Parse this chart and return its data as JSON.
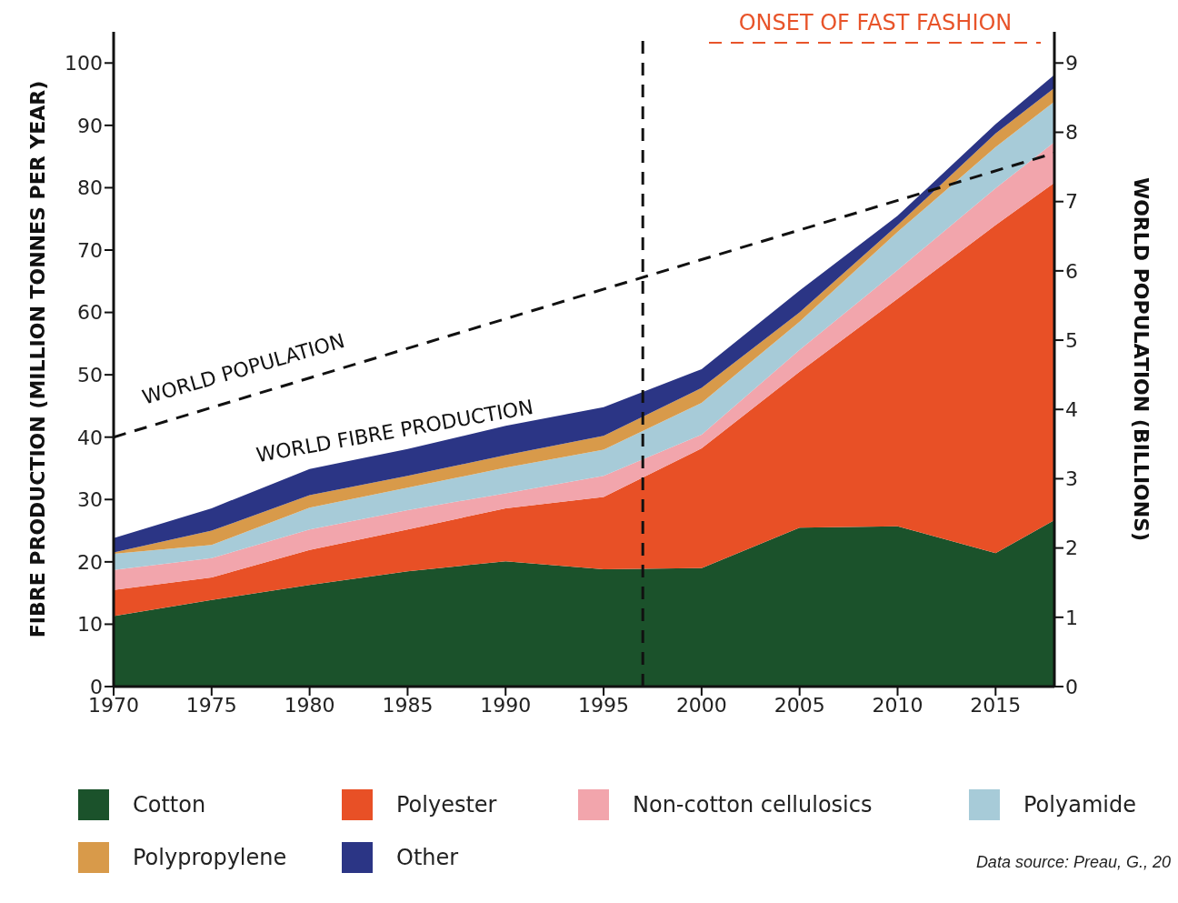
{
  "chart_data": {
    "type": "area",
    "stacked": true,
    "ylabel": "FIBRE PRODUCTION (MILLION TONNES PER YEAR)",
    "y2label": "WORLD POPULATION (BILLIONS)",
    "x": [
      1970,
      1975,
      1980,
      1985,
      1990,
      1995,
      2000,
      2005,
      2010,
      2015,
      2018
    ],
    "xlim": [
      1970,
      2018
    ],
    "xticks": [
      1970,
      1975,
      1980,
      1985,
      1990,
      1995,
      2000,
      2005,
      2010,
      2015
    ],
    "ylim": [
      0,
      105
    ],
    "yticks": [
      0,
      10,
      20,
      30,
      40,
      50,
      60,
      70,
      80,
      90,
      100
    ],
    "y2lim": [
      0,
      9.45
    ],
    "y2ticks": [
      0,
      1,
      2,
      3,
      4,
      5,
      6,
      7,
      8,
      9
    ],
    "series": [
      {
        "name": "Cotton",
        "color": "#1b522b",
        "values": [
          11.3,
          13.9,
          16.3,
          18.5,
          20.1,
          18.8,
          19.0,
          25.5,
          25.7,
          21.4,
          26.7
        ]
      },
      {
        "name": "Polyester",
        "color": "#e85026",
        "values": [
          4.2,
          3.6,
          5.6,
          6.7,
          8.5,
          11.6,
          19.2,
          25.0,
          36.5,
          52.6,
          54.1
        ]
      },
      {
        "name": "Non-cotton cellulosics",
        "color": "#f2a5ac",
        "values": [
          3.2,
          3.1,
          3.3,
          3.1,
          2.4,
          3.4,
          2.2,
          3.5,
          4.6,
          5.9,
          6.5
        ]
      },
      {
        "name": "Polyamide",
        "color": "#a7cbd8",
        "values": [
          2.6,
          2.1,
          3.5,
          3.6,
          4.1,
          4.2,
          5.1,
          4.5,
          6.1,
          6.6,
          6.5
        ]
      },
      {
        "name": "Polypropylene",
        "color": "#d89a4a",
        "values": [
          0.2,
          2.3,
          2.0,
          1.9,
          2.0,
          2.2,
          2.4,
          1.5,
          1.1,
          2.2,
          2.2
        ]
      },
      {
        "name": "Other",
        "color": "#2b3585",
        "values": [
          2.3,
          3.6,
          4.2,
          4.3,
          4.7,
          4.6,
          3.0,
          3.5,
          1.5,
          1.5,
          2.1
        ]
      },
      {
        "name": "WORLD POPULATION",
        "type": "line",
        "axis": "y2",
        "color": "#111111",
        "line_style": "dashed",
        "x": [
          1970,
          2018
        ],
        "values": [
          3.6,
          7.7
        ]
      }
    ],
    "ref_lines": [
      {
        "axis": "x",
        "value": 1997,
        "color": "#111111",
        "line_style": "dashed"
      }
    ],
    "annotations": [
      "WORLD FIBRE PRODUCTION",
      "ONSET OF FAST FASHION",
      "Data source: Preau, G., 20"
    ],
    "legend": "bottom",
    "grid": false
  }
}
